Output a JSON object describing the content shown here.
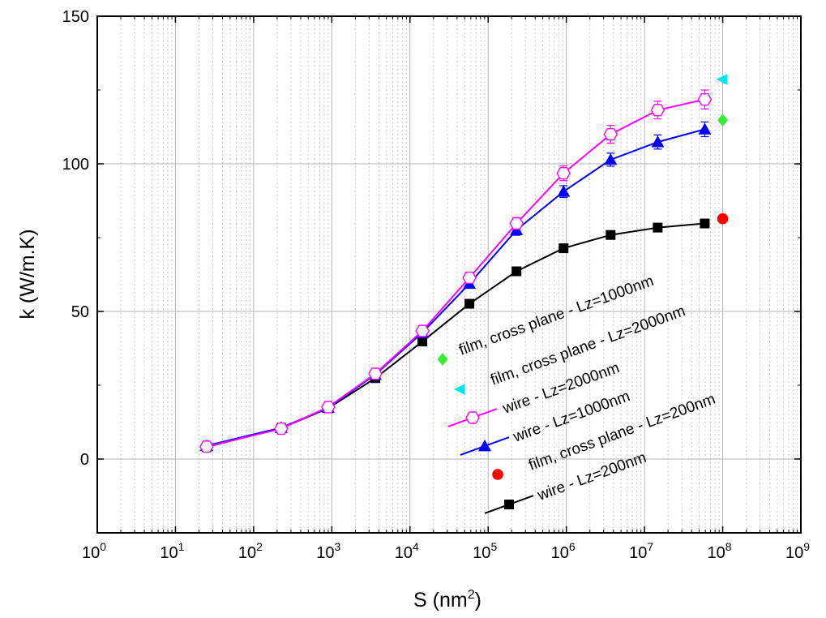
{
  "chart_data": {
    "type": "line",
    "title": "",
    "xlabel": "S (nm",
    "xlabel_sup": "2",
    "xlabel_close": ")",
    "ylabel": "k (W/m.K)",
    "x_scale": "log",
    "xlim": [
      1,
      1000000000
    ],
    "ylim": [
      -25,
      150
    ],
    "x_tick_base": "10",
    "x_tick_exponents": [
      "0",
      "1",
      "2",
      "3",
      "4",
      "5",
      "6",
      "7",
      "8",
      "9"
    ],
    "y_ticks": [
      "0",
      "50",
      "100",
      "150"
    ],
    "y_tick_values": [
      0,
      50,
      100,
      150
    ],
    "grid": true,
    "legend_placement": "inside, lower right, rotated",
    "series": [
      {
        "name": "wire - Lz=2000nm",
        "color": "#ff00ff",
        "marker": "open-hexagon",
        "line": true,
        "points": [
          [
            25,
            4.2
          ],
          [
            225,
            10.3
          ],
          [
            900,
            17.6
          ],
          [
            3600,
            28.9
          ],
          [
            14400,
            43.4
          ],
          [
            57600,
            61.4
          ],
          [
            230400,
            79.8
          ],
          [
            921600,
            96.8
          ],
          [
            3686400,
            110
          ],
          [
            14745600,
            118.2
          ],
          [
            58982400,
            121.8
          ]
        ],
        "errors": [
          0.6,
          0.8,
          1.0,
          1.2,
          1.5,
          1.8,
          2.0,
          2.5,
          3.0,
          3.0,
          3.2
        ]
      },
      {
        "name": "wire - Lz=1000nm",
        "color": "#0000ff",
        "marker": "filled-triangle",
        "line": true,
        "points": [
          [
            25,
            4.5
          ],
          [
            225,
            10.6
          ],
          [
            900,
            17.4
          ],
          [
            3600,
            28.6
          ],
          [
            14400,
            42.8
          ],
          [
            57600,
            59.4
          ],
          [
            230400,
            77.6
          ],
          [
            921600,
            90.6
          ],
          [
            3686400,
            101.4
          ],
          [
            14745600,
            107.4
          ],
          [
            58982400,
            111.7
          ]
        ],
        "errors": [
          0.5,
          0.7,
          0.9,
          1.0,
          1.2,
          1.5,
          1.8,
          2.0,
          2.2,
          2.4,
          2.5
        ]
      },
      {
        "name": "wire - Lz=200nm",
        "color": "#000000",
        "marker": "filled-square",
        "line": true,
        "points": [
          [
            25,
            4.1
          ],
          [
            225,
            10.4
          ],
          [
            900,
            17.2
          ],
          [
            3600,
            27.4
          ],
          [
            14400,
            39.8
          ],
          [
            57600,
            52.6
          ],
          [
            230400,
            63.6
          ],
          [
            921600,
            71.4
          ],
          [
            3686400,
            75.9
          ],
          [
            14745600,
            78.4
          ],
          [
            58982400,
            79.8
          ]
        ],
        "errors": []
      },
      {
        "name": "film, cross plane - Lz=2000nm",
        "color": "#00e5ee",
        "marker": "left-triangle",
        "line": false,
        "points": [
          [
            100000000,
            128.6
          ]
        ],
        "errors": []
      },
      {
        "name": "film, cross plane - Lz=1000nm",
        "color": "#33ee33",
        "marker": "filled-diamond",
        "line": false,
        "points": [
          [
            100000000,
            114.8
          ]
        ],
        "errors": []
      },
      {
        "name": "film, cross plane - Lz=200nm",
        "color": "#ff0000",
        "marker": "filled-circle",
        "line": false,
        "points": [
          [
            100000000,
            81.4
          ]
        ],
        "errors": []
      }
    ],
    "legend": [
      {
        "label": "film, cross plane - Lz=1000nm",
        "series_index": 4
      },
      {
        "label": "film, cross plane - Lz=2000nm",
        "series_index": 3
      },
      {
        "label": "wire - Lz=2000nm",
        "series_index": 0
      },
      {
        "label": "wire - Lz=1000nm",
        "series_index": 1
      },
      {
        "label": "film, cross plane - Lz=200nm",
        "series_index": 5
      },
      {
        "label": "wire - Lz=200nm",
        "series_index": 2
      }
    ]
  }
}
